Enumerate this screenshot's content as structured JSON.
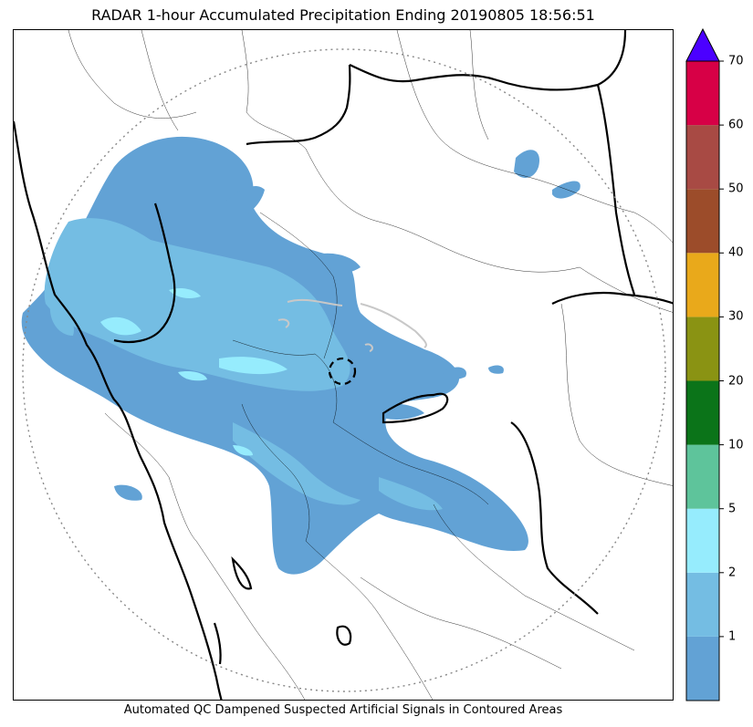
{
  "title": "RADAR 1-hour Accumulated Precipitation Ending 20190805 18:56:51",
  "footer": "Automated QC Dampened Suspected Artificial Signals in Contoured Areas",
  "colorbar": {
    "levels": [
      {
        "label": "",
        "color": "#62a2d5"
      },
      {
        "label": "1",
        "color": "#74bde3"
      },
      {
        "label": "2",
        "color": "#96ecfd"
      },
      {
        "label": "5",
        "color": "#5ec49b"
      },
      {
        "label": "10",
        "color": "#0b7419"
      },
      {
        "label": "20",
        "color": "#8a9313"
      },
      {
        "label": "30",
        "color": "#e9a91b"
      },
      {
        "label": "40",
        "color": "#9c4c2a"
      },
      {
        "label": "50",
        "color": "#a84a44"
      },
      {
        "label": "60",
        "color": "#d70046"
      },
      {
        "label": "70",
        "color": ""
      }
    ],
    "extend_color": "#4b00ff"
  },
  "colors": {
    "light_rain": "#62a2d5",
    "moderate_rain": "#74bde3",
    "heavy_rain": "#96ecfd",
    "border": "#000000",
    "range_ring": "#888888"
  }
}
